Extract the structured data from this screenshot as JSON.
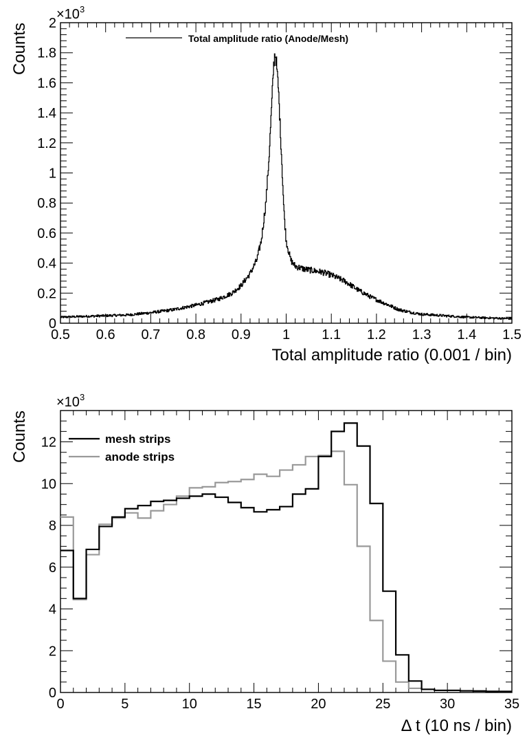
{
  "chart_data": [
    {
      "type": "line",
      "style": "step-histogram",
      "xlabel": "Total amplitude ratio (0.001 / bin)",
      "ylabel": "Counts",
      "y_multiplier": "×10",
      "y_multiplier_exp": "3",
      "xlim": [
        0.5,
        1.5
      ],
      "ylim": [
        0,
        2
      ],
      "xticks": [
        "0.5",
        "0.6",
        "0.7",
        "0.8",
        "0.9",
        "1",
        "1.1",
        "1.2",
        "1.3",
        "1.4",
        "1.5"
      ],
      "yticks": [
        "0",
        "0.2",
        "0.4",
        "0.6",
        "0.8",
        "1",
        "1.2",
        "1.4",
        "1.6",
        "1.8",
        "2"
      ],
      "bin_width": 0.001,
      "legend_position": "top-center",
      "grid": false,
      "series": [
        {
          "name": "Total amplitude ratio (Anode/Mesh)",
          "color": "#000000",
          "points": [
            [
              0.5,
              0.04
            ],
            [
              0.55,
              0.045
            ],
            [
              0.6,
              0.05
            ],
            [
              0.65,
              0.055
            ],
            [
              0.7,
              0.07
            ],
            [
              0.75,
              0.09
            ],
            [
              0.8,
              0.12
            ],
            [
              0.85,
              0.16
            ],
            [
              0.88,
              0.2
            ],
            [
              0.9,
              0.25
            ],
            [
              0.92,
              0.33
            ],
            [
              0.935,
              0.42
            ],
            [
              0.945,
              0.55
            ],
            [
              0.955,
              0.8
            ],
            [
              0.962,
              1.1
            ],
            [
              0.968,
              1.45
            ],
            [
              0.972,
              1.7
            ],
            [
              0.975,
              1.8
            ],
            [
              0.978,
              1.75
            ],
            [
              0.983,
              1.55
            ],
            [
              0.99,
              1.1
            ],
            [
              0.995,
              0.75
            ],
            [
              1.0,
              0.55
            ],
            [
              1.01,
              0.42
            ],
            [
              1.02,
              0.38
            ],
            [
              1.04,
              0.36
            ],
            [
              1.06,
              0.35
            ],
            [
              1.08,
              0.34
            ],
            [
              1.1,
              0.32
            ],
            [
              1.13,
              0.28
            ],
            [
              1.16,
              0.22
            ],
            [
              1.19,
              0.17
            ],
            [
              1.22,
              0.13
            ],
            [
              1.25,
              0.09
            ],
            [
              1.28,
              0.07
            ],
            [
              1.3,
              0.06
            ],
            [
              1.35,
              0.05
            ],
            [
              1.4,
              0.04
            ],
            [
              1.45,
              0.035
            ],
            [
              1.5,
              0.03
            ]
          ]
        }
      ]
    },
    {
      "type": "line",
      "style": "step-histogram",
      "xlabel": "Δ t (10 ns / bin)",
      "ylabel": "Counts",
      "y_multiplier": "×10",
      "y_multiplier_exp": "3",
      "xlim": [
        0,
        35
      ],
      "ylim": [
        0,
        13.5
      ],
      "xticks": [
        "0",
        "5",
        "10",
        "15",
        "20",
        "25",
        "30",
        "35"
      ],
      "yticks": [
        "0",
        "2",
        "4",
        "6",
        "8",
        "10",
        "12"
      ],
      "legend_position": "top-left",
      "grid": false,
      "bins": [
        0,
        1,
        2,
        3,
        4,
        5,
        6,
        7,
        8,
        9,
        10,
        11,
        12,
        13,
        14,
        15,
        16,
        17,
        18,
        19,
        20,
        21,
        22,
        23,
        24,
        25,
        26,
        27,
        28,
        29,
        30,
        31,
        32,
        33,
        34
      ],
      "series": [
        {
          "name": "mesh strips",
          "color": "#000000",
          "values": [
            6.8,
            4.5,
            6.85,
            7.95,
            8.4,
            8.8,
            8.95,
            9.15,
            9.2,
            9.3,
            9.4,
            9.5,
            9.35,
            9.1,
            8.85,
            8.65,
            8.75,
            8.9,
            9.5,
            9.75,
            11.3,
            12.5,
            12.9,
            11.8,
            9.05,
            4.85,
            1.8,
            0.55,
            0.15,
            0.1,
            0.1,
            0.08,
            0.07,
            0.05,
            0.05
          ]
        },
        {
          "name": "anode strips",
          "color": "#999999",
          "values": [
            8.4,
            4.45,
            6.6,
            8.05,
            8.35,
            8.6,
            8.35,
            8.7,
            9.0,
            9.4,
            9.8,
            9.85,
            10.05,
            10.1,
            10.2,
            10.45,
            10.35,
            10.65,
            10.9,
            11.3,
            11.35,
            11.55,
            9.95,
            7.0,
            3.45,
            1.5,
            0.5,
            0.2,
            0.15,
            0.1,
            0.1,
            0.08,
            0.07,
            0.06,
            0.05
          ]
        }
      ]
    }
  ]
}
